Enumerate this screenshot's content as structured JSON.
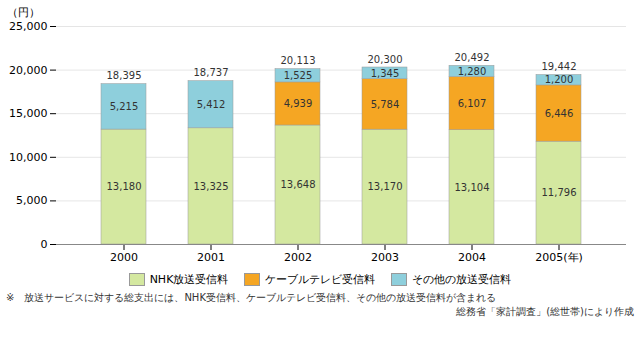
{
  "chart_data": {
    "type": "bar",
    "stacked": true,
    "data_labels": true,
    "grid": true,
    "legend": "bottom",
    "ylabel": "（円）",
    "categories": [
      "2000",
      "2001",
      "2002",
      "2003",
      "2004",
      "2005(年)"
    ],
    "series": [
      {
        "name": "NHK放送受信料",
        "color": "#d4e8a0",
        "values": [
          13180,
          13325,
          13648,
          13170,
          13104,
          11796
        ],
        "value_labels": [
          "13,180",
          "13,325",
          "13,648",
          "13,170",
          "13,104",
          "11,796"
        ]
      },
      {
        "name": "ケーブルテレビ受信料",
        "color": "#f5a623",
        "values": [
          0,
          0,
          4939,
          5784,
          6107,
          6446
        ],
        "value_labels": [
          null,
          null,
          "4,939",
          "5,784",
          "6,107",
          "6,446"
        ]
      },
      {
        "name": "その他の放送受信料",
        "color": "#8ecfdc",
        "values": [
          5215,
          5412,
          1525,
          1345,
          1280,
          1200
        ],
        "value_labels": [
          "5,215",
          "5,412",
          "1,525",
          "1,345",
          "1,280",
          "1,200"
        ]
      }
    ],
    "totals": [
      18395,
      18737,
      20113,
      20300,
      20492,
      19442
    ],
    "total_labels": [
      "18,395",
      "18,737",
      "20,113",
      "20,300",
      "20,492",
      "19,442"
    ],
    "ylim": [
      0,
      25000
    ],
    "yticks": [
      0,
      {
        "value": 5000,
        "label": "5,000"
      },
      {
        "value": 10000,
        "label": "10,000"
      },
      {
        "value": 15000,
        "label": "15,000"
      },
      {
        "value": 20000,
        "label": "20,000"
      },
      {
        "value": 25000,
        "label": "25,000"
      }
    ],
    "annotations": [
      "※　放送サービスに対する総支出には、NHK受信料、ケーブルテレビ受信料、その他の放送受信料が含まれる",
      "総務省「家計調査」(総世帯)により作成"
    ]
  }
}
